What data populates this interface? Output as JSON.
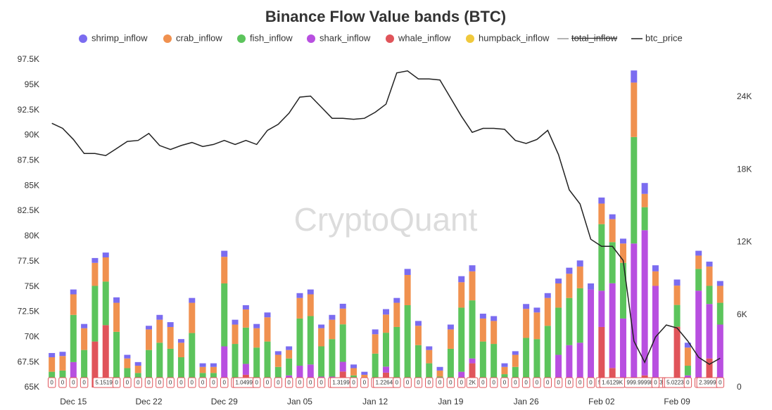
{
  "chart_data": {
    "type": "bar",
    "title": "Binance Flow Value bands (BTC)",
    "watermark": "CryptoQuant",
    "categories": [
      null,
      null,
      "Dec 15",
      null,
      null,
      null,
      null,
      null,
      null,
      "Dec 22",
      null,
      null,
      null,
      null,
      null,
      null,
      "Dec 29",
      null,
      null,
      null,
      null,
      null,
      null,
      "Jan 05",
      null,
      null,
      null,
      null,
      null,
      null,
      "Jan 12",
      null,
      null,
      null,
      null,
      null,
      null,
      "Jan 19",
      null,
      null,
      null,
      null,
      null,
      null,
      "Jan 26",
      null,
      null,
      null,
      null,
      null,
      null,
      "Feb 02",
      null,
      null,
      null,
      null,
      null,
      null,
      "Feb 09",
      null,
      null,
      null,
      null
    ],
    "ylim": [
      65000,
      97500
    ],
    "yticks": [
      {
        "value": 65000,
        "label": "65K"
      },
      {
        "value": 67500,
        "label": "67.5K"
      },
      {
        "value": 70000,
        "label": "70K"
      },
      {
        "value": 72500,
        "label": "72.5K"
      },
      {
        "value": 75000,
        "label": "75K"
      },
      {
        "value": 77500,
        "label": "77.5K"
      },
      {
        "value": 80000,
        "label": "80K"
      },
      {
        "value": 82500,
        "label": "82.5K"
      },
      {
        "value": 85000,
        "label": "85K"
      },
      {
        "value": 87500,
        "label": "87.5K"
      },
      {
        "value": 90000,
        "label": "90K"
      },
      {
        "value": 92500,
        "label": "92.5K"
      },
      {
        "value": 95000,
        "label": "95K"
      },
      {
        "value": 97500,
        "label": "97.5K"
      }
    ],
    "y2lim": [
      0,
      27083
    ],
    "y2ticks": [
      0,
      {
        "value": 6000,
        "label": "6K"
      },
      {
        "value": 12000,
        "label": "12K"
      },
      {
        "value": 18000,
        "label": "18K"
      },
      {
        "value": 24000,
        "label": "24K"
      }
    ],
    "series": [
      {
        "name": "shrimp_inflow",
        "color": "#7b6cf0",
        "axis": "y2",
        "values": [
          350,
          350,
          400,
          350,
          400,
          400,
          450,
          300,
          300,
          300,
          400,
          400,
          300,
          400,
          300,
          300,
          500,
          400,
          350,
          350,
          400,
          300,
          300,
          400,
          400,
          300,
          400,
          400,
          300,
          250,
          400,
          450,
          400,
          500,
          400,
          300,
          300,
          400,
          500,
          500,
          400,
          400,
          300,
          300,
          400,
          400,
          400,
          400,
          500,
          500,
          500,
          500,
          400,
          400,
          1000,
          900,
          500,
          0,
          500,
          400,
          400,
          400,
          400
        ]
      },
      {
        "name": "crab_inflow",
        "color": "#f0914f",
        "axis": "y2",
        "values": [
          1200,
          1200,
          1700,
          1800,
          1900,
          2000,
          2400,
          800,
          600,
          1700,
          1900,
          1800,
          1200,
          2500,
          500,
          500,
          2200,
          1600,
          1500,
          1600,
          2000,
          1000,
          700,
          1700,
          1800,
          1500,
          1600,
          1300,
          600,
          350,
          1600,
          1500,
          2000,
          2500,
          1600,
          1100,
          500,
          1600,
          2100,
          2400,
          1900,
          1900,
          600,
          1000,
          2400,
          2200,
          2300,
          2000,
          2000,
          1800,
          0,
          1700,
          1900,
          1600,
          4500,
          1100,
          1200,
          0,
          1600,
          1500,
          1100,
          1600,
          1400
        ]
      },
      {
        "name": "fish_inflow",
        "color": "#5cc45c",
        "axis": "y2",
        "values": [
          1300,
          1400,
          3900,
          3100,
          4600,
          3600,
          4600,
          1600,
          1200,
          3100,
          3700,
          3200,
          2500,
          4500,
          1200,
          1200,
          5200,
          3600,
          3000,
          3000,
          3800,
          1700,
          1400,
          3900,
          4000,
          2500,
          3100,
          3100,
          1000,
          700,
          2800,
          2800,
          4600,
          6400,
          3500,
          2000,
          900,
          3200,
          5300,
          4800,
          3800,
          3600,
          1100,
          1700,
          3600,
          3600,
          4500,
          3900,
          3900,
          4500,
          0,
          5500,
          3400,
          4600,
          8800,
          1900,
          0,
          0,
          1800,
          800,
          1800,
          1500,
          1800
        ]
      },
      {
        "name": "shark_inflow",
        "color": "#b84fe0",
        "axis": "y2",
        "values": [
          0,
          0,
          2100,
          0,
          0,
          0,
          0,
          0,
          0,
          0,
          0,
          0,
          0,
          0,
          0,
          0,
          3400,
          0,
          900,
          300,
          0,
          0,
          1000,
          1800,
          1900,
          900,
          900,
          800,
          0,
          0,
          0,
          500,
          400,
          400,
          0,
          0,
          0,
          0,
          1300,
          400,
          0,
          0,
          0,
          0,
          500,
          400,
          600,
          2700,
          3500,
          3700,
          8100,
          3000,
          7000,
          5700,
          11900,
          12000,
          8400,
          300,
          0,
          1000,
          8000,
          4500,
          5200
        ]
      },
      {
        "name": "whale_inflow",
        "color": "#e0545a",
        "axis": "y2",
        "values": [
          0,
          0,
          0,
          0,
          3800,
          5151.9,
          0,
          0,
          0,
          0,
          0,
          0,
          0,
          0,
          0,
          0,
          0,
          0,
          1049.9,
          0,
          0,
          0,
          0,
          0,
          0,
          0,
          0,
          1319.9,
          0,
          0,
          0,
          1226.4,
          0,
          0,
          0,
          0,
          0,
          0,
          0,
          2000,
          0,
          0,
          0,
          0,
          0,
          0,
          0,
          0,
          0,
          0,
          0,
          5000,
          1612.9,
          0,
          0,
          999.99998853,
          0,
          0,
          5022.3,
          0,
          0,
          2399.9,
          0
        ],
        "value_labels": [
          "0",
          "0",
          "0",
          "0",
          null,
          "5.1519K",
          "0",
          "0",
          "0",
          "0",
          "0",
          "0",
          "0",
          "0",
          "0",
          "0",
          "0",
          "0",
          "1.0499K",
          "0",
          "0",
          "0",
          "0",
          "0",
          "0",
          "0",
          "0",
          "1.3199K",
          "0",
          "0",
          "0",
          "1.2264K",
          "0",
          "0",
          "0",
          "0",
          "0",
          "0",
          "0",
          "2K",
          "0",
          "0",
          "0",
          "0",
          "0",
          "0",
          "0",
          "0",
          "0",
          "0",
          "0",
          "5K",
          "1.6129K",
          null,
          null,
          "999.99998853",
          "0",
          "0",
          "5.0223K",
          "0",
          "0",
          "2.3999K",
          "0"
        ]
      },
      {
        "name": "humpback_inflow",
        "color": "#f0c93c",
        "axis": "y2",
        "values": [
          0,
          0,
          0,
          0,
          0,
          0,
          0,
          0,
          0,
          0,
          0,
          0,
          0,
          0,
          0,
          0,
          0,
          0,
          0,
          0,
          0,
          0,
          0,
          0,
          0,
          0,
          0,
          0,
          0,
          0,
          0,
          0,
          0,
          0,
          0,
          0,
          0,
          0,
          0,
          0,
          0,
          0,
          0,
          0,
          0,
          0,
          0,
          0,
          0,
          0,
          0,
          0,
          0,
          0,
          0,
          0,
          0,
          0,
          0,
          0,
          0,
          0,
          0
        ]
      },
      {
        "name": "total_inflow",
        "color": "#9a9a9a",
        "hidden": true
      },
      {
        "name": "btc_price",
        "color": "#222222",
        "type": "line",
        "values": [
          91200,
          90700,
          89600,
          88200,
          88200,
          88000,
          88700,
          89400,
          89500,
          90200,
          89000,
          88600,
          89000,
          89300,
          88900,
          89100,
          89500,
          89100,
          89500,
          89100,
          90500,
          91100,
          92200,
          93800,
          93900,
          92800,
          91700,
          91700,
          91600,
          91700,
          92300,
          93100,
          96200,
          96400,
          95600,
          95600,
          95500,
          93700,
          91900,
          90300,
          90700,
          90700,
          90600,
          89500,
          89200,
          89600,
          90500,
          88100,
          84600,
          83200,
          79700,
          79000,
          79000,
          77600,
          69600,
          67500,
          70000,
          71200,
          70900,
          69600,
          68000,
          67300,
          67900
        ]
      }
    ]
  }
}
